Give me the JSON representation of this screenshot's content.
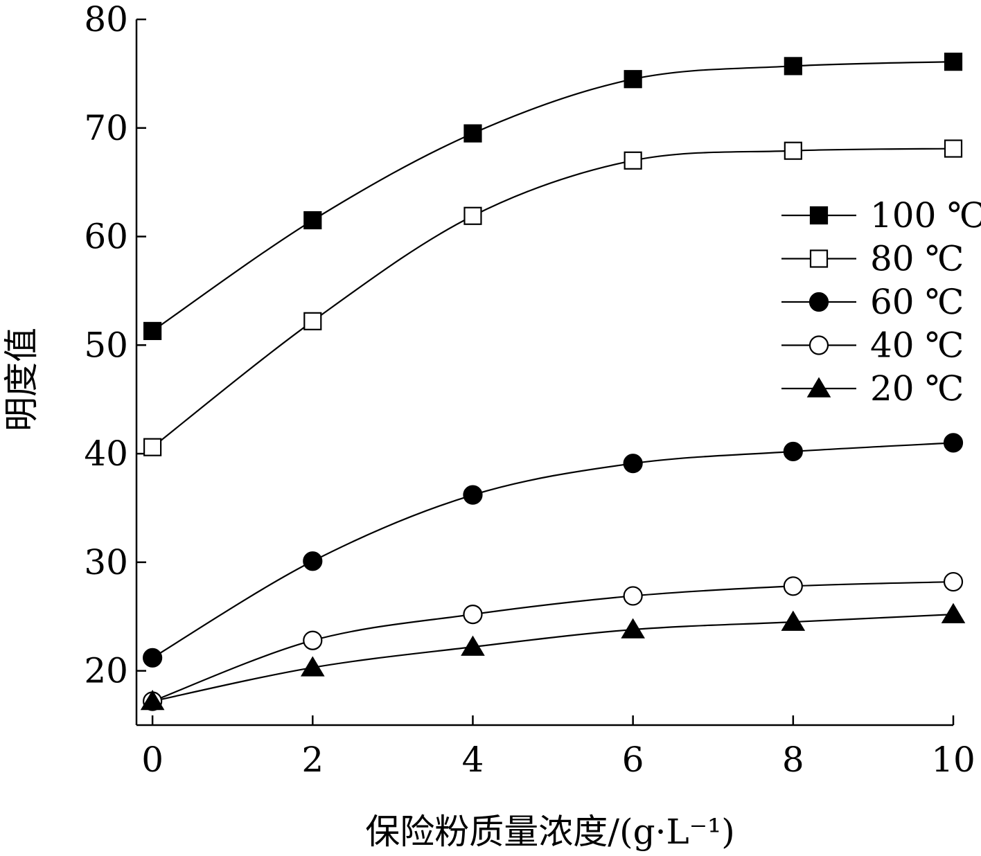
{
  "chart_data": {
    "type": "line",
    "xlabel": "保险粉质量浓度/(g·L⁻¹)",
    "ylabel": "明度值",
    "x": [
      0,
      2,
      4,
      6,
      8,
      10
    ],
    "xlim": [
      -0.2,
      10
    ],
    "ylim": [
      15,
      80
    ],
    "x_ticks": [
      "0",
      "2",
      "4",
      "6",
      "8",
      "10"
    ],
    "y_ticks": [
      "20",
      "30",
      "40",
      "50",
      "60",
      "70",
      "80"
    ],
    "legend_position": "right",
    "series": [
      {
        "name": "100 ℃",
        "marker": "filled-square",
        "values": [
          51.3,
          61.5,
          69.5,
          74.5,
          75.7,
          76.1
        ]
      },
      {
        "name": "80 ℃",
        "marker": "open-square",
        "values": [
          40.6,
          52.2,
          61.9,
          67.0,
          67.9,
          68.1
        ]
      },
      {
        "name": "60 ℃",
        "marker": "filled-circle",
        "values": [
          21.2,
          30.1,
          36.2,
          39.1,
          40.2,
          41.0
        ]
      },
      {
        "name": "40 ℃",
        "marker": "open-circle",
        "values": [
          17.2,
          22.8,
          25.2,
          26.9,
          27.8,
          28.2
        ]
      },
      {
        "name": "20 ℃",
        "marker": "filled-triangle",
        "values": [
          17.2,
          20.3,
          22.2,
          23.8,
          24.5,
          25.2
        ]
      }
    ],
    "grid": false,
    "colors": {
      "line": "#000000",
      "background": "#ffffff"
    }
  }
}
